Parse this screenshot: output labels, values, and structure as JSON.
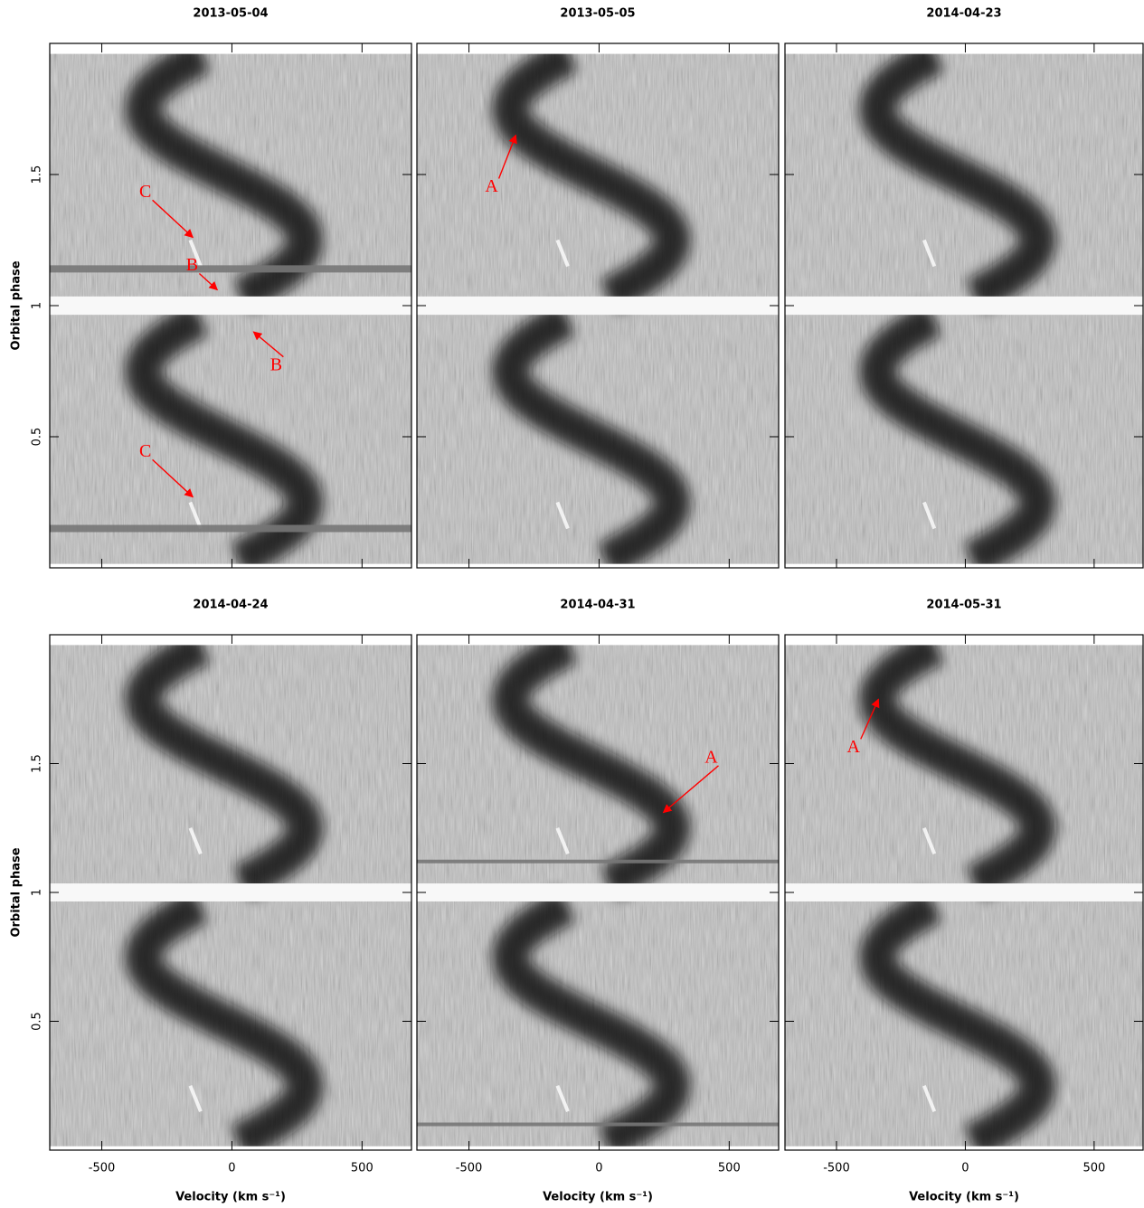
{
  "chart_data": [
    {
      "type": "heatmap",
      "title": "2013-05-04",
      "xlim": [
        -700,
        690
      ],
      "ylim": [
        0,
        2
      ],
      "xticks": [
        -500,
        0,
        500
      ],
      "yticks": [
        0.5,
        1,
        1.5
      ],
      "xtick_labels": false,
      "ytick_labels": true,
      "y_label": "Orbital phase",
      "annotations": [
        "C",
        "B",
        "B",
        "C"
      ]
    },
    {
      "type": "heatmap",
      "title": "2013-05-05",
      "xlim": [
        -700,
        690
      ],
      "ylim": [
        0,
        2
      ],
      "xticks": [
        -500,
        0,
        500
      ],
      "yticks": [
        0.5,
        1,
        1.5
      ],
      "xtick_labels": false,
      "ytick_labels": false,
      "annotations": [
        "A"
      ]
    },
    {
      "type": "heatmap",
      "title": "2014-04-23",
      "xlim": [
        -700,
        690
      ],
      "ylim": [
        0,
        2
      ],
      "xticks": [
        -500,
        0,
        500
      ],
      "yticks": [
        0.5,
        1,
        1.5
      ],
      "xtick_labels": false,
      "ytick_labels": false,
      "annotations": []
    },
    {
      "type": "heatmap",
      "title": "2014-04-24",
      "xlim": [
        -700,
        690
      ],
      "ylim": [
        0,
        2
      ],
      "xticks": [
        -500,
        0,
        500
      ],
      "yticks": [
        0.5,
        1,
        1.5
      ],
      "xtick_labels": true,
      "ytick_labels": true,
      "x_label": "Velocity (km s⁻¹)",
      "y_label": "Orbital phase",
      "annotations": []
    },
    {
      "type": "heatmap",
      "title": "2014-04-31",
      "xlim": [
        -700,
        690
      ],
      "ylim": [
        0,
        2
      ],
      "xticks": [
        -500,
        0,
        500
      ],
      "yticks": [
        0.5,
        1,
        1.5
      ],
      "xtick_labels": true,
      "ytick_labels": false,
      "x_label": "Velocity (km s⁻¹)",
      "annotations": [
        "A"
      ]
    },
    {
      "type": "heatmap",
      "title": "2014-05-31",
      "xlim": [
        -700,
        690
      ],
      "ylim": [
        0,
        2
      ],
      "xticks": [
        -500,
        0,
        500
      ],
      "yticks": [
        0.5,
        1,
        1.5
      ],
      "xtick_labels": true,
      "ytick_labels": false,
      "x_label": "Velocity (km s⁻¹)",
      "annotations": [
        "A"
      ]
    }
  ]
}
